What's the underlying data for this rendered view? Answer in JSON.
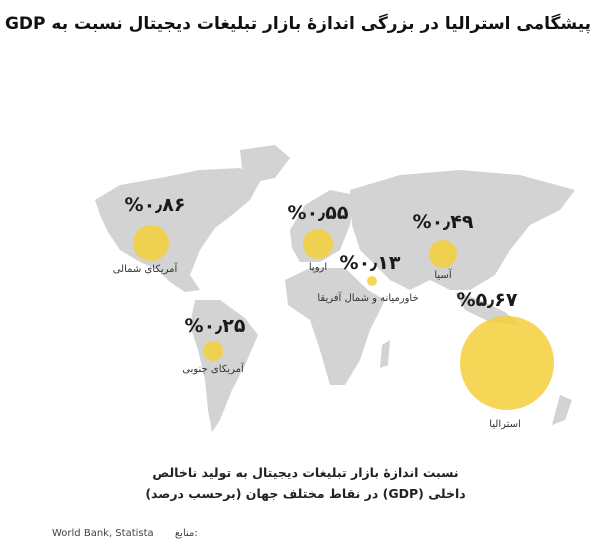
{
  "title": "پیشگامی استرالیا در بزرگی اندازهٔ بازار تبلیغات دیجیتال نسبت به GDP",
  "colors": {
    "bubble": "#f5cf3a",
    "land": "#d3d3d3"
  },
  "regions": [
    {
      "name": "آمریکای شمالی",
      "value_label": "%۰٫۸۶",
      "value": 0.86
    },
    {
      "name": "اروپا",
      "value_label": "%۰٫۵۵",
      "value": 0.55
    },
    {
      "name": "خاورمیانه و شمال آفریقا",
      "value_label": "%۰٫۱۳",
      "value": 0.13
    },
    {
      "name": "آسیا",
      "value_label": "%۰٫۴۹",
      "value": 0.49
    },
    {
      "name": "استرالیا",
      "value_label": "%۵٫۶۷",
      "value": 5.67
    },
    {
      "name": "آمریکای جنوبی",
      "value_label": "%۰٫۲۵",
      "value": 0.25
    }
  ],
  "caption": {
    "line1": "نسبت اندازهٔ بازار تبلیغات دیجیتال به تولید ناخالص",
    "line2": "داخلی (GDP) در نقاط مختلف جهان (برحسب درصد)"
  },
  "source": {
    "label": "منابع:",
    "text": "World Bank, Statista"
  }
}
